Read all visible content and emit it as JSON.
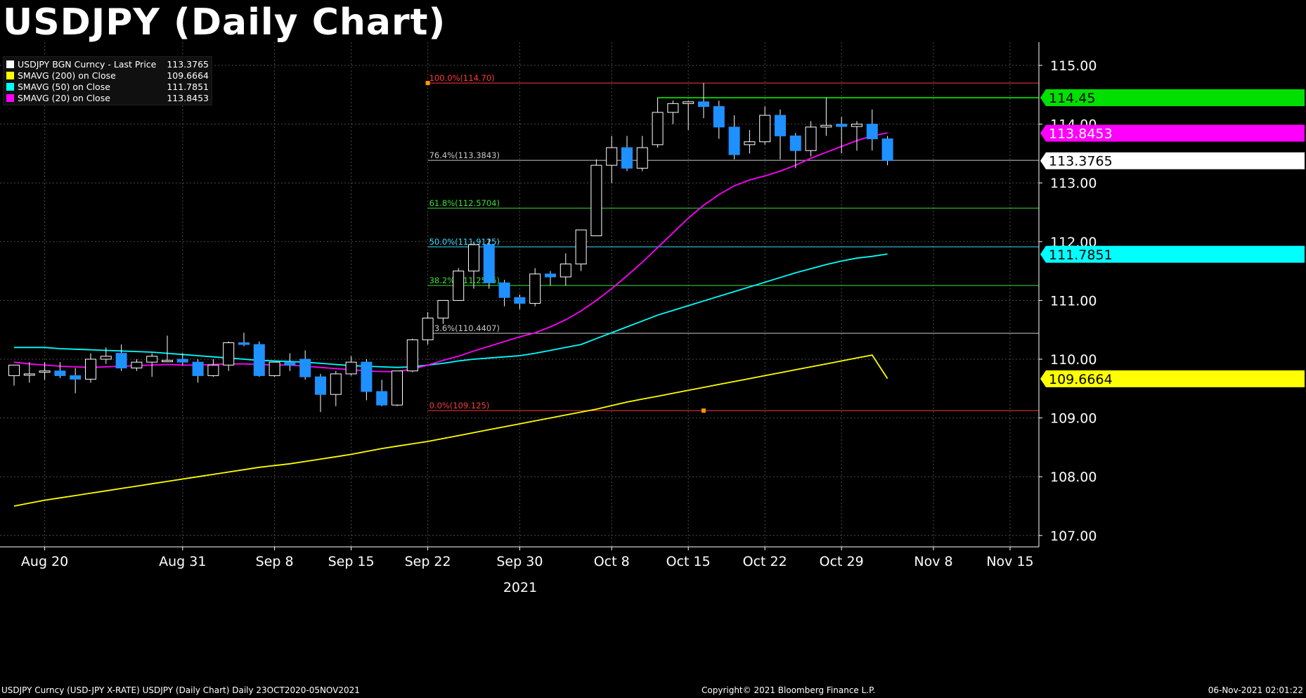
{
  "title": "USDJPY (Daily Chart)",
  "legend": [
    {
      "label": "USDJPY BGN Curncy - Last Price",
      "value": "113.3765",
      "color": "#ffffff"
    },
    {
      "label": "SMAVG (200)  on Close",
      "value": "109.6664",
      "color": "#ffff00"
    },
    {
      "label": "SMAVG (50)  on Close",
      "value": "111.7851",
      "color": "#00ffff"
    },
    {
      "label": "SMAVG (20)  on Close",
      "value": "113.8453",
      "color": "#ff00ff"
    }
  ],
  "footer": {
    "left": "USDJPY Curncy (USD-JPY X-RATE) USDJPY (Daily Chart)  Daily 23OCT2020-05NOV2021",
    "copyright": "Copyright© 2021 Bloomberg Finance L.P.",
    "timestamp": "06-Nov-2021 02:01:22"
  },
  "chart_data": {
    "type": "candlestick",
    "xlabel": "2021",
    "ylim": [
      106.8,
      115.4
    ],
    "yticks": [
      "107.00",
      "108.00",
      "109.00",
      "110.00",
      "111.00",
      "112.00",
      "113.00",
      "114.00",
      "115.00"
    ],
    "xticks": [
      {
        "label": "Aug 20",
        "index": 2
      },
      {
        "label": "Aug 31",
        "index": 11
      },
      {
        "label": "Sep 8",
        "index": 17
      },
      {
        "label": "Sep 15",
        "index": 22
      },
      {
        "label": "Sep 22",
        "index": 27
      },
      {
        "label": "Sep 30",
        "index": 33
      },
      {
        "label": "Oct 8",
        "index": 39
      },
      {
        "label": "Oct 15",
        "index": 44
      },
      {
        "label": "Oct 22",
        "index": 49
      },
      {
        "label": "Oct 29",
        "index": 54
      },
      {
        "label": "Nov 8",
        "index": 60
      },
      {
        "label": "Nov 15",
        "index": 65
      }
    ],
    "candles": [
      {
        "o": 109.72,
        "h": 109.9,
        "l": 109.55,
        "c": 109.9
      },
      {
        "o": 109.75,
        "h": 109.95,
        "l": 109.6,
        "c": 109.75
      },
      {
        "o": 109.78,
        "h": 109.95,
        "l": 109.65,
        "c": 109.8
      },
      {
        "o": 109.8,
        "h": 109.95,
        "l": 109.68,
        "c": 109.72
      },
      {
        "o": 109.72,
        "h": 109.85,
        "l": 109.42,
        "c": 109.66
      },
      {
        "o": 109.66,
        "h": 110.1,
        "l": 109.6,
        "c": 110.0
      },
      {
        "o": 110.0,
        "h": 110.2,
        "l": 109.92,
        "c": 110.05
      },
      {
        "o": 110.1,
        "h": 110.25,
        "l": 109.8,
        "c": 109.85
      },
      {
        "o": 109.85,
        "h": 110.0,
        "l": 109.8,
        "c": 109.95
      },
      {
        "o": 109.95,
        "h": 110.1,
        "l": 109.7,
        "c": 110.05
      },
      {
        "o": 109.98,
        "h": 110.4,
        "l": 109.95,
        "c": 109.98
      },
      {
        "o": 110.0,
        "h": 110.1,
        "l": 109.9,
        "c": 109.95
      },
      {
        "o": 109.95,
        "h": 110.0,
        "l": 109.6,
        "c": 109.72
      },
      {
        "o": 109.72,
        "h": 110.0,
        "l": 109.7,
        "c": 109.9
      },
      {
        "o": 109.9,
        "h": 110.3,
        "l": 109.8,
        "c": 110.28
      },
      {
        "o": 110.28,
        "h": 110.45,
        "l": 110.22,
        "c": 110.25
      },
      {
        "o": 110.25,
        "h": 110.3,
        "l": 109.7,
        "c": 109.72
      },
      {
        "o": 109.72,
        "h": 109.95,
        "l": 109.7,
        "c": 109.95
      },
      {
        "o": 109.95,
        "h": 110.1,
        "l": 109.8,
        "c": 109.9
      },
      {
        "o": 110.0,
        "h": 110.15,
        "l": 109.65,
        "c": 109.7
      },
      {
        "o": 109.7,
        "h": 109.75,
        "l": 109.1,
        "c": 109.4
      },
      {
        "o": 109.4,
        "h": 109.8,
        "l": 109.2,
        "c": 109.75
      },
      {
        "o": 109.75,
        "h": 110.05,
        "l": 109.72,
        "c": 109.95
      },
      {
        "o": 109.95,
        "h": 110.0,
        "l": 109.3,
        "c": 109.45
      },
      {
        "o": 109.45,
        "h": 109.65,
        "l": 109.2,
        "c": 109.22
      },
      {
        "o": 109.22,
        "h": 109.8,
        "l": 109.2,
        "c": 109.8
      },
      {
        "o": 109.8,
        "h": 110.35,
        "l": 109.78,
        "c": 110.33
      },
      {
        "o": 110.33,
        "h": 110.8,
        "l": 110.25,
        "c": 110.7
      },
      {
        "o": 110.7,
        "h": 111.0,
        "l": 110.6,
        "c": 111.0
      },
      {
        "o": 111.0,
        "h": 111.55,
        "l": 111.0,
        "c": 111.5
      },
      {
        "o": 111.5,
        "h": 112.0,
        "l": 111.2,
        "c": 111.95
      },
      {
        "o": 111.95,
        "h": 112.05,
        "l": 111.2,
        "c": 111.3
      },
      {
        "o": 111.3,
        "h": 111.35,
        "l": 110.9,
        "c": 111.05
      },
      {
        "o": 111.05,
        "h": 111.1,
        "l": 110.85,
        "c": 110.95
      },
      {
        "o": 110.95,
        "h": 111.55,
        "l": 110.9,
        "c": 111.45
      },
      {
        "o": 111.45,
        "h": 111.5,
        "l": 111.25,
        "c": 111.4
      },
      {
        "o": 111.4,
        "h": 111.8,
        "l": 111.25,
        "c": 111.62
      },
      {
        "o": 111.62,
        "h": 112.2,
        "l": 111.5,
        "c": 112.2
      },
      {
        "o": 112.1,
        "h": 113.4,
        "l": 112.1,
        "c": 113.3
      },
      {
        "o": 113.3,
        "h": 113.8,
        "l": 113.0,
        "c": 113.6
      },
      {
        "o": 113.6,
        "h": 113.8,
        "l": 113.2,
        "c": 113.25
      },
      {
        "o": 113.25,
        "h": 113.8,
        "l": 113.2,
        "c": 113.6
      },
      {
        "o": 113.65,
        "h": 114.45,
        "l": 113.6,
        "c": 114.2
      },
      {
        "o": 114.2,
        "h": 114.4,
        "l": 114.0,
        "c": 114.35
      },
      {
        "o": 114.35,
        "h": 114.4,
        "l": 113.9,
        "c": 114.38
      },
      {
        "o": 114.38,
        "h": 114.7,
        "l": 114.1,
        "c": 114.3
      },
      {
        "o": 114.3,
        "h": 114.4,
        "l": 113.75,
        "c": 113.95
      },
      {
        "o": 113.95,
        "h": 114.15,
        "l": 113.4,
        "c": 113.48
      },
      {
        "o": 113.65,
        "h": 113.9,
        "l": 113.5,
        "c": 113.7
      },
      {
        "o": 113.7,
        "h": 114.3,
        "l": 113.65,
        "c": 114.15
      },
      {
        "o": 114.15,
        "h": 114.25,
        "l": 113.4,
        "c": 113.8
      },
      {
        "o": 113.8,
        "h": 113.85,
        "l": 113.25,
        "c": 113.55
      },
      {
        "o": 113.55,
        "h": 114.05,
        "l": 113.45,
        "c": 113.95
      },
      {
        "o": 113.95,
        "h": 114.45,
        "l": 113.8,
        "c": 113.98
      },
      {
        "o": 114.0,
        "h": 114.12,
        "l": 113.5,
        "c": 113.96
      },
      {
        "o": 113.96,
        "h": 114.05,
        "l": 113.55,
        "c": 114.0
      },
      {
        "o": 114.0,
        "h": 114.25,
        "l": 113.55,
        "c": 113.75
      },
      {
        "o": 113.75,
        "h": 113.8,
        "l": 113.3,
        "c": 113.38
      }
    ],
    "series": [
      {
        "name": "SMAVG (200)  on Close",
        "color": "#ffff00",
        "values": [
          107.5,
          107.55,
          107.6,
          107.64,
          107.68,
          107.72,
          107.76,
          107.8,
          107.84,
          107.88,
          107.92,
          107.96,
          108.0,
          108.04,
          108.08,
          108.12,
          108.16,
          108.19,
          108.22,
          108.26,
          108.3,
          108.34,
          108.38,
          108.43,
          108.48,
          108.52,
          108.56,
          108.6,
          108.65,
          108.7,
          108.75,
          108.8,
          108.85,
          108.9,
          108.95,
          109.0,
          109.05,
          109.1,
          109.15,
          109.21,
          109.27,
          109.32,
          109.37,
          109.42,
          109.47,
          109.52,
          109.57,
          109.62,
          109.67,
          109.72,
          109.77,
          109.82,
          109.87,
          109.92,
          109.97,
          110.02,
          110.07,
          109.67
        ]
      },
      {
        "name": "SMAVG (50)  on Close",
        "color": "#00ffff",
        "values": [
          110.2,
          110.2,
          110.2,
          110.18,
          110.17,
          110.16,
          110.15,
          110.14,
          110.13,
          110.12,
          110.1,
          110.08,
          110.06,
          110.04,
          110.02,
          110.0,
          109.98,
          109.97,
          109.96,
          109.95,
          109.93,
          109.91,
          109.89,
          109.88,
          109.87,
          109.86,
          109.87,
          109.9,
          109.93,
          109.97,
          110.0,
          110.02,
          110.04,
          110.06,
          110.1,
          110.15,
          110.2,
          110.25,
          110.35,
          110.45,
          110.55,
          110.65,
          110.75,
          110.83,
          110.91,
          110.99,
          111.07,
          111.15,
          111.23,
          111.31,
          111.39,
          111.47,
          111.54,
          111.61,
          111.67,
          111.72,
          111.75,
          111.79
        ]
      },
      {
        "name": "SMAVG (20)  on Close",
        "color": "#ff00ff",
        "values": [
          109.95,
          109.92,
          109.9,
          109.88,
          109.87,
          109.86,
          109.87,
          109.88,
          109.89,
          109.9,
          109.91,
          109.9,
          109.9,
          109.91,
          109.92,
          109.92,
          109.91,
          109.9,
          109.9,
          109.88,
          109.86,
          109.84,
          109.82,
          109.8,
          109.79,
          109.79,
          109.83,
          109.9,
          109.98,
          110.05,
          110.14,
          110.22,
          110.3,
          110.38,
          110.45,
          110.55,
          110.67,
          110.82,
          111.0,
          111.2,
          111.42,
          111.65,
          111.9,
          112.15,
          112.4,
          112.62,
          112.8,
          112.95,
          113.05,
          113.12,
          113.2,
          113.3,
          113.42,
          113.52,
          113.62,
          113.72,
          113.8,
          113.85
        ]
      }
    ],
    "fibonacci": [
      {
        "label": "100.0%(114.70)",
        "value": 114.7,
        "color": "#ff3b3b"
      },
      {
        "label": "76.4%(113.3843)",
        "value": 113.3843,
        "color": "#c8c8c8"
      },
      {
        "label": "61.8%(112.5704)",
        "value": 112.5704,
        "color": "#38e038"
      },
      {
        "label": "50.0%(111.9125)",
        "value": 111.9125,
        "color": "#38e0ff"
      },
      {
        "label": "38.2%(111.2546)",
        "value": 111.2546,
        "color": "#38e038"
      },
      {
        "label": "23.6%(110.4407)",
        "value": 110.4407,
        "color": "#c8c8c8"
      },
      {
        "label": "0.0%(109.125)",
        "value": 109.125,
        "color": "#ff3b3b"
      }
    ],
    "resistance": {
      "value": 114.45,
      "label": "114.45",
      "color": "#00ff00"
    },
    "price_tags": [
      {
        "label": "114.45",
        "value": 114.45,
        "bg": "#00e000",
        "fg": "#000000"
      },
      {
        "label": "113.8453",
        "value": 113.8453,
        "bg": "#ff00ff",
        "fg": "#ffffff"
      },
      {
        "label": "113.3765",
        "value": 113.3765,
        "bg": "#ffffff",
        "fg": "#000000"
      },
      {
        "label": "111.7851",
        "value": 111.7851,
        "bg": "#00ffff",
        "fg": "#000000"
      },
      {
        "label": "109.6664",
        "value": 109.6664,
        "bg": "#ffff00",
        "fg": "#000000"
      }
    ],
    "colors": {
      "up_fill": "#000000",
      "up_stroke": "#ffffff",
      "down_fill": "#1e90ff",
      "grid": "#4a4a4a",
      "axis": "#ffffff"
    }
  }
}
